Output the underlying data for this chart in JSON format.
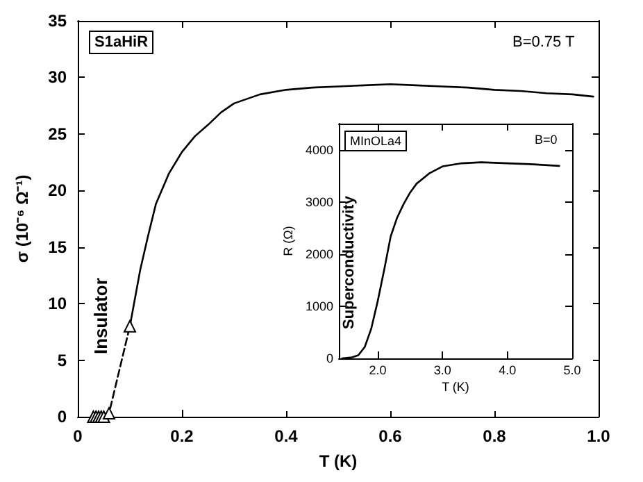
{
  "chart_data": [
    {
      "type": "line",
      "xlabel": "T (K)",
      "ylabel": "σ (10⁻⁶ Ω⁻¹)",
      "annotations": [
        "S1aHiR",
        "B=0.75 T",
        "Insulator"
      ],
      "xlim": [
        0,
        1
      ],
      "ylim": [
        0,
        35
      ],
      "xticks": [
        0,
        0.2,
        0.4,
        0.6,
        0.8,
        {
          "value": 1,
          "label": "1.0"
        }
      ],
      "yticks": [
        0,
        5,
        10,
        15,
        20,
        25,
        30,
        35
      ],
      "series": [
        {
          "color": "#000000",
          "marker": "triangle",
          "line_style": "dashed",
          "x": [
            0.03,
            0.035,
            0.04,
            0.045,
            0.05,
            0.06,
            0.1
          ],
          "values": [
            0,
            0,
            0,
            0,
            0,
            0.3,
            8
          ]
        },
        {
          "color": "#000000",
          "marker": "none",
          "line_style": "solid",
          "x": [
            0.1,
            0.11,
            0.12,
            0.135,
            0.15,
            0.175,
            0.2,
            0.225,
            0.25,
            0.275,
            0.3,
            0.35,
            0.4,
            0.45,
            0.5,
            0.55,
            0.6,
            0.65,
            0.7,
            0.75,
            0.8,
            0.85,
            0.9,
            0.95,
            0.99
          ],
          "values": [
            8,
            10.5,
            13,
            16,
            18.8,
            21.5,
            23.4,
            24.8,
            25.8,
            26.9,
            27.7,
            28.5,
            28.9,
            29.1,
            29.2,
            29.3,
            29.4,
            29.3,
            29.2,
            29.1,
            28.9,
            28.8,
            28.6,
            28.5,
            28.3
          ]
        }
      ]
    },
    {
      "type": "line",
      "xlabel": "T (K)",
      "ylabel": "R (Ω)",
      "annotations": [
        "MInOLa4",
        "B=0",
        "Superconductivity"
      ],
      "xlim": [
        1.4,
        5
      ],
      "ylim": [
        0,
        4500
      ],
      "xticks": [
        {
          "value": 2,
          "label": "2.0"
        },
        {
          "value": 3,
          "label": "3.0"
        },
        {
          "value": 4,
          "label": "4.0"
        },
        {
          "value": 5,
          "label": "5.0"
        }
      ],
      "yticks": [
        0,
        1000,
        2000,
        3000,
        4000
      ],
      "series": [
        {
          "color": "#000000",
          "marker": "none",
          "line_style": "solid",
          "x": [
            1.45,
            1.6,
            1.7,
            1.8,
            1.9,
            2.0,
            2.1,
            2.2,
            2.3,
            2.4,
            2.5,
            2.6,
            2.8,
            3.0,
            3.3,
            3.6,
            4.0,
            4.4,
            4.8
          ],
          "values": [
            0,
            20,
            60,
            220,
            570,
            1100,
            1700,
            2340,
            2700,
            2960,
            3180,
            3350,
            3550,
            3680,
            3740,
            3760,
            3740,
            3720,
            3690
          ]
        }
      ]
    }
  ]
}
